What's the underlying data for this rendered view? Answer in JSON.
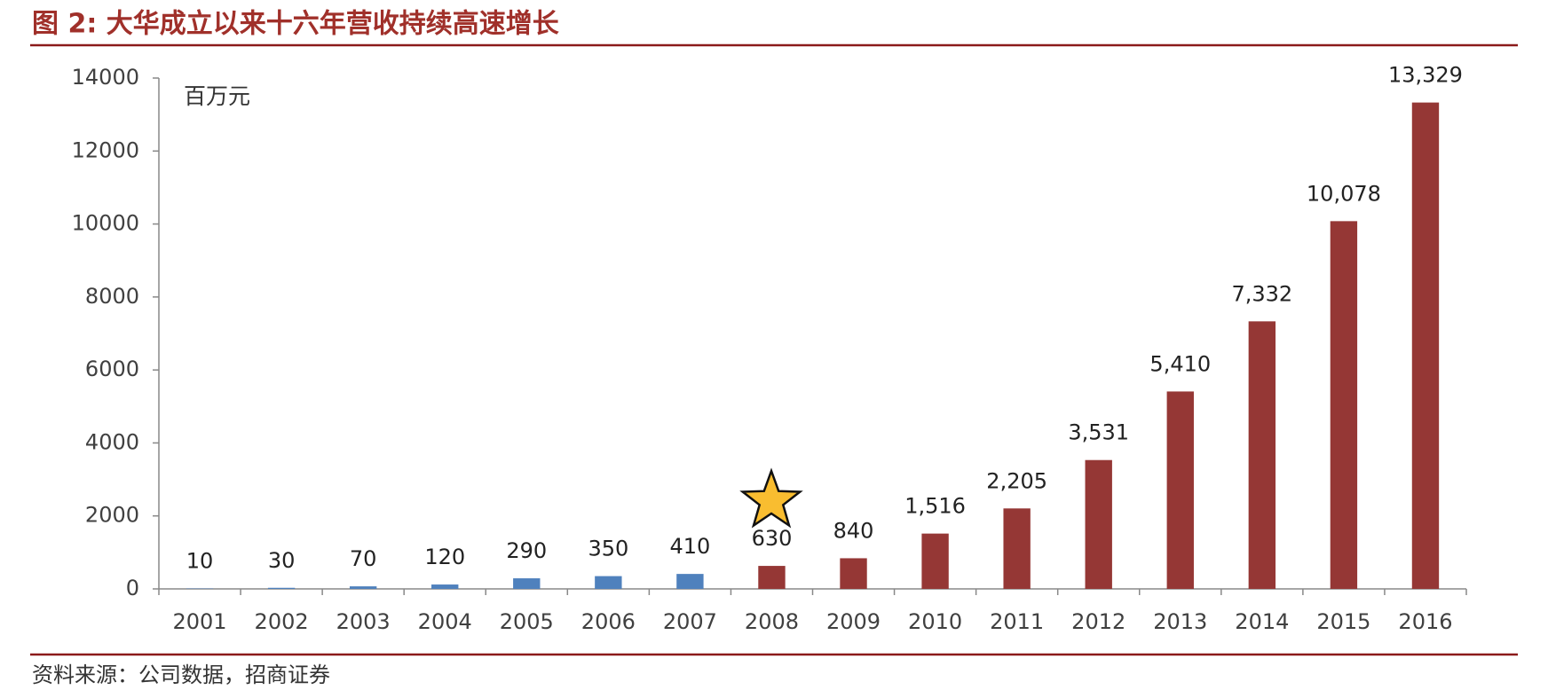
{
  "chart_data": {
    "type": "bar",
    "title": "图 2:  大华成立以来十六年营收持续高速增长",
    "unit_label": "百万元",
    "source": "资料来源：公司数据，招商证券",
    "categories": [
      "2001",
      "2002",
      "2003",
      "2004",
      "2005",
      "2006",
      "2007",
      "2008",
      "2009",
      "2010",
      "2011",
      "2012",
      "2013",
      "2014",
      "2015",
      "2016"
    ],
    "values": [
      10,
      30,
      70,
      120,
      290,
      350,
      410,
      630,
      840,
      1516,
      2205,
      3531,
      5410,
      7332,
      10078,
      13329
    ],
    "value_labels": [
      "10",
      "30",
      "70",
      "120",
      "290",
      "350",
      "410",
      "630",
      "840",
      "1,516",
      "2,205",
      "3,531",
      "5,410",
      "7,332",
      "10,078",
      "13,329"
    ],
    "colors": [
      "#4f81bd",
      "#4f81bd",
      "#4f81bd",
      "#4f81bd",
      "#4f81bd",
      "#4f81bd",
      "#4f81bd",
      "#953735",
      "#953735",
      "#953735",
      "#953735",
      "#953735",
      "#953735",
      "#953735",
      "#953735",
      "#953735"
    ],
    "ylim": [
      0,
      14000
    ],
    "yticks": [
      0,
      2000,
      4000,
      6000,
      8000,
      10000,
      12000,
      14000
    ],
    "grid": false
  }
}
